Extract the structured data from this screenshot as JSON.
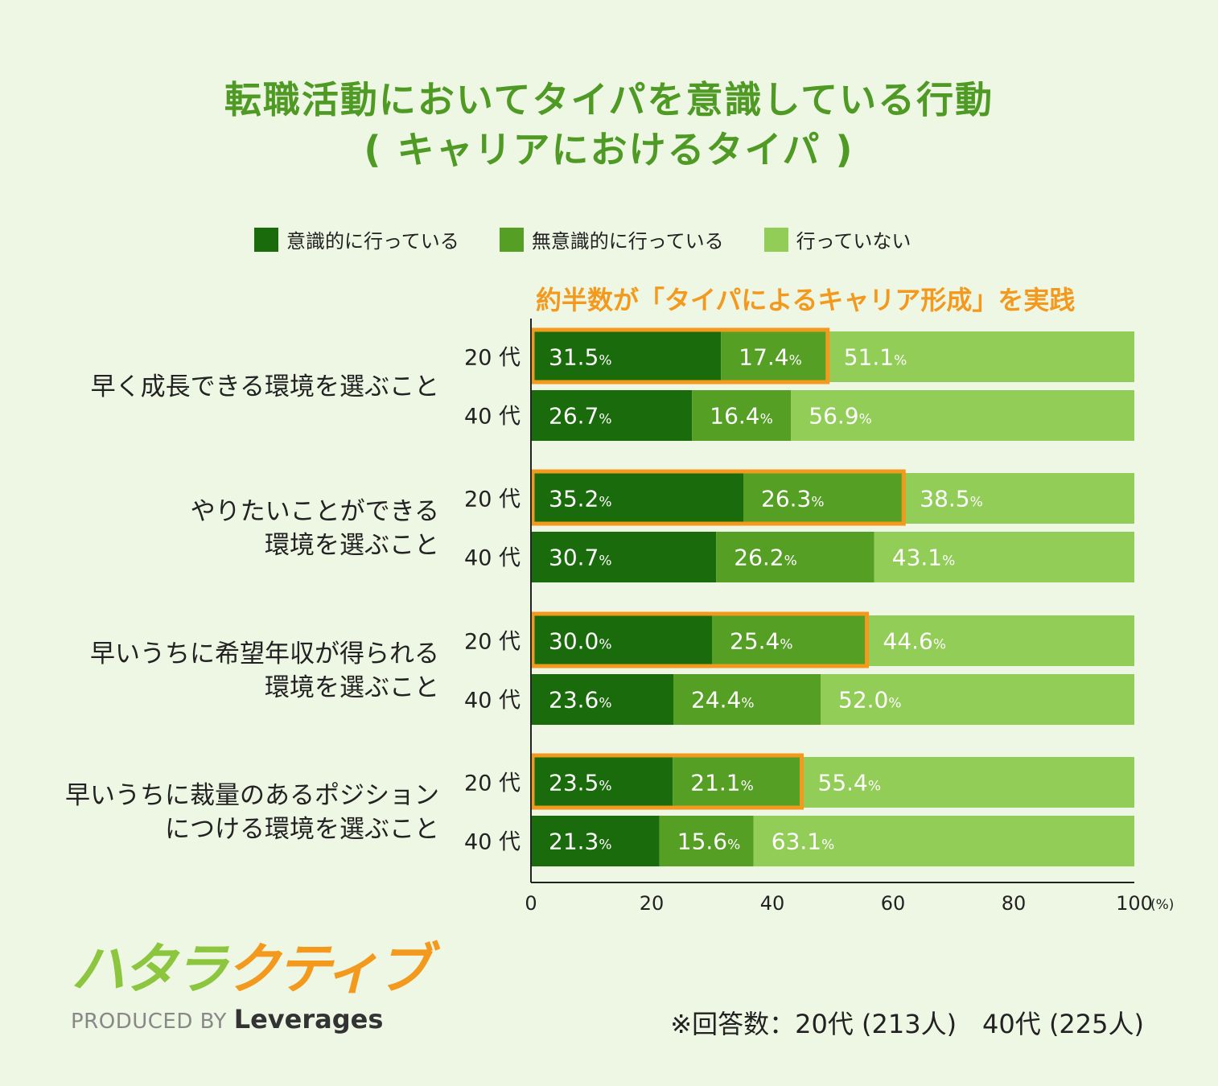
{
  "title": {
    "line1": "転職活動においてタイパを意識している行動",
    "line2": "( キャリアにおけるタイパ )"
  },
  "legend": [
    {
      "label": "意識的に行っている",
      "color": "#1a6b0b"
    },
    {
      "label": "無意識的に行っている",
      "color": "#559f24"
    },
    {
      "label": "行っていない",
      "color": "#92cd58"
    }
  ],
  "highlight_text": "約半数が「タイパによるキャリア形成」を実践",
  "highlight_color": "#f39a1e",
  "note": "※回答数：20代 (213人)　40代 (225人)",
  "logo": {
    "brand_green": "ハタラ",
    "brand_orange": "クティブ",
    "produced_by": "PRODUCED BY",
    "company": "Leverages"
  },
  "chart_data": {
    "type": "bar",
    "orientation": "horizontal",
    "stacked": true,
    "percent_suffix": "%",
    "x_unit": "(%)",
    "xlim": [
      0,
      100
    ],
    "xticks": [
      "0",
      "20",
      "40",
      "60",
      "80",
      "100"
    ],
    "series_names": [
      "意識的に行っている",
      "無意識的に行っている",
      "行っていない"
    ],
    "groups": [
      {
        "label_lines": [
          "早く成長できる環境を選ぶこと"
        ],
        "rows": [
          {
            "age": "20 代",
            "values": [
              31.5,
              17.4,
              51.1
            ],
            "highlighted": true
          },
          {
            "age": "40 代",
            "values": [
              26.7,
              16.4,
              56.9
            ],
            "highlighted": false
          }
        ]
      },
      {
        "label_lines": [
          "やりたいことができる",
          "環境を選ぶこと"
        ],
        "rows": [
          {
            "age": "20 代",
            "values": [
              35.2,
              26.3,
              38.5
            ],
            "highlighted": true
          },
          {
            "age": "40 代",
            "values": [
              30.7,
              26.2,
              43.1
            ],
            "highlighted": false
          }
        ]
      },
      {
        "label_lines": [
          "早いうちに希望年収が得られる",
          "環境を選ぶこと"
        ],
        "rows": [
          {
            "age": "20 代",
            "values": [
              30.0,
              25.4,
              44.6
            ],
            "highlighted": true
          },
          {
            "age": "40 代",
            "values": [
              23.6,
              24.4,
              52.0
            ],
            "highlighted": false
          }
        ]
      },
      {
        "label_lines": [
          "早いうちに裁量のあるポジション",
          "につける環境を選ぶこと"
        ],
        "rows": [
          {
            "age": "20 代",
            "values": [
              23.5,
              21.1,
              55.4
            ],
            "highlighted": true
          },
          {
            "age": "40 代",
            "values": [
              21.3,
              15.6,
              63.1
            ],
            "highlighted": false
          }
        ]
      }
    ]
  }
}
